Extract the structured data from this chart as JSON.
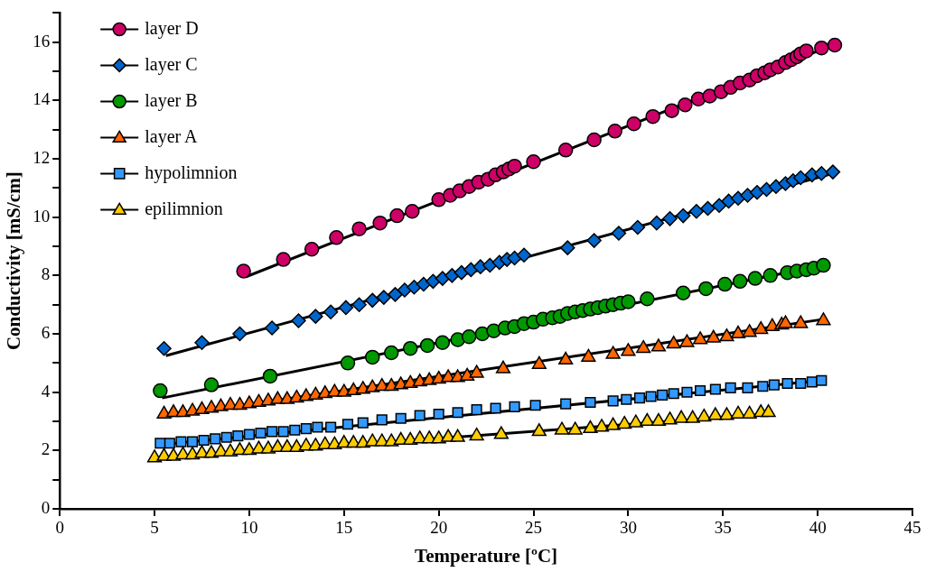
{
  "chart_data": {
    "type": "scatter",
    "xlabel": "Temperature [ºC]",
    "ylabel": "Conductivity [mS/cm]",
    "xlim": [
      0,
      45
    ],
    "xticks": [
      0,
      5,
      10,
      15,
      20,
      25,
      30,
      35,
      40,
      45
    ],
    "ylim": [
      0,
      17
    ],
    "yticks": [
      0,
      {
        "value": 1,
        "label": null
      },
      2,
      {
        "value": 3,
        "label": null
      },
      4,
      {
        "value": 5,
        "label": null
      },
      6,
      {
        "value": 7,
        "label": null
      },
      8,
      {
        "value": 9,
        "label": null
      },
      10,
      {
        "value": 11,
        "label": null
      },
      12,
      {
        "value": 13,
        "label": null
      },
      14,
      {
        "value": 15,
        "label": null
      },
      16,
      {
        "value": 17,
        "label": null
      }
    ],
    "grid": false,
    "legend": "top left",
    "series": [
      {
        "type": "line",
        "color": "#000000",
        "marker": "none",
        "x": [
          9.8,
          41
        ],
        "values": [
          7.95,
          15.95
        ]
      },
      {
        "type": "line",
        "color": "#000000",
        "marker": "none",
        "x": [
          5.6,
          40.8
        ],
        "values": [
          5.25,
          11.5
        ]
      },
      {
        "type": "line",
        "color": "#000000",
        "marker": "none",
        "x": [
          5.4,
          40.3
        ],
        "values": [
          3.8,
          8.35
        ]
      },
      {
        "type": "line",
        "color": "#000000",
        "marker": "none",
        "x": [
          5.5,
          40.3
        ],
        "values": [
          3.15,
          6.5
        ]
      },
      {
        "type": "line",
        "color": "#000000",
        "marker": "none",
        "x": [
          5.3,
          40.2
        ],
        "values": [
          2.2,
          4.4
        ]
      },
      {
        "type": "line",
        "color": "#000000",
        "marker": "none",
        "x": [
          5,
          37.4
        ],
        "values": [
          1.7,
          3.25
        ]
      },
      {
        "name": "layer D",
        "type": "scatter",
        "color": "#cc0066",
        "marker": "circle",
        "x": [
          9.7,
          11.8,
          13.3,
          14.6,
          15.8,
          16.9,
          17.8,
          18.6,
          20.0,
          20.6,
          21.1,
          21.6,
          22.1,
          22.6,
          23.0,
          23.4,
          23.7,
          24.0,
          25.0,
          26.7,
          28.2,
          29.3,
          30.3,
          31.3,
          32.3,
          33.0,
          33.7,
          34.3,
          34.9,
          35.4,
          35.9,
          36.4,
          36.8,
          37.2,
          37.5,
          37.9,
          38.3,
          38.6,
          38.9,
          39.1,
          39.4,
          40.2,
          40.9
        ],
        "values": [
          8.15,
          8.55,
          8.9,
          9.3,
          9.6,
          9.8,
          10.05,
          10.2,
          10.6,
          10.75,
          10.9,
          11.05,
          11.2,
          11.3,
          11.45,
          11.55,
          11.65,
          11.75,
          11.9,
          12.3,
          12.65,
          12.95,
          13.2,
          13.45,
          13.65,
          13.85,
          14.05,
          14.15,
          14.3,
          14.45,
          14.6,
          14.7,
          14.85,
          14.95,
          15.05,
          15.15,
          15.3,
          15.4,
          15.5,
          15.6,
          15.7,
          15.8,
          15.9
        ]
      },
      {
        "name": "layer C",
        "type": "scatter",
        "color": "#0066cc",
        "marker": "diamond",
        "x": [
          5.5,
          7.5,
          9.5,
          11.2,
          12.6,
          13.5,
          14.3,
          15.1,
          15.8,
          16.5,
          17.1,
          17.7,
          18.2,
          18.7,
          19.2,
          19.7,
          20.2,
          20.7,
          21.2,
          21.7,
          22.2,
          22.7,
          23.2,
          23.6,
          24.0,
          24.5,
          26.8,
          28.2,
          29.5,
          30.5,
          31.5,
          32.2,
          32.9,
          33.6,
          34.2,
          34.8,
          35.3,
          35.8,
          36.3,
          36.8,
          37.3,
          37.8,
          38.3,
          38.7,
          39.1,
          39.7,
          40.2,
          40.8
        ],
        "values": [
          5.5,
          5.7,
          6.0,
          6.2,
          6.45,
          6.6,
          6.75,
          6.9,
          7.0,
          7.15,
          7.25,
          7.35,
          7.5,
          7.6,
          7.7,
          7.8,
          7.9,
          8.0,
          8.1,
          8.2,
          8.3,
          8.35,
          8.45,
          8.55,
          8.6,
          8.7,
          8.95,
          9.2,
          9.45,
          9.65,
          9.8,
          9.95,
          10.05,
          10.2,
          10.3,
          10.4,
          10.55,
          10.65,
          10.75,
          10.85,
          10.95,
          11.05,
          11.15,
          11.25,
          11.35,
          11.45,
          11.5,
          11.55
        ]
      },
      {
        "name": "layer B",
        "type": "scatter",
        "color": "#009900",
        "marker": "circle",
        "x": [
          5.3,
          8.0,
          11.1,
          15.2,
          16.5,
          17.5,
          18.5,
          19.4,
          20.2,
          21.0,
          21.6,
          22.3,
          22.9,
          23.5,
          24.0,
          24.5,
          25.0,
          25.5,
          26.0,
          26.4,
          26.8,
          27.2,
          27.6,
          28.0,
          28.4,
          28.8,
          29.2,
          29.6,
          30.0,
          31.0,
          32.9,
          34.1,
          35.1,
          35.9,
          36.7,
          37.5,
          38.4,
          38.9,
          39.4,
          39.8,
          40.3
        ],
        "values": [
          4.05,
          4.25,
          4.55,
          5.0,
          5.2,
          5.35,
          5.5,
          5.6,
          5.7,
          5.8,
          5.9,
          6.0,
          6.1,
          6.2,
          6.25,
          6.35,
          6.4,
          6.5,
          6.55,
          6.6,
          6.7,
          6.75,
          6.8,
          6.85,
          6.9,
          6.95,
          7.0,
          7.05,
          7.1,
          7.2,
          7.4,
          7.55,
          7.7,
          7.8,
          7.9,
          8.0,
          8.1,
          8.15,
          8.2,
          8.25,
          8.35
        ]
      },
      {
        "name": "layer A",
        "type": "scatter",
        "color": "#ff6600",
        "marker": "triangle",
        "x": [
          5.5,
          6.0,
          6.5,
          7.0,
          7.5,
          8.0,
          8.5,
          9.0,
          9.5,
          10.0,
          10.5,
          11.0,
          11.5,
          12.0,
          12.5,
          13.0,
          13.5,
          14.0,
          14.5,
          15.0,
          15.5,
          16.0,
          16.5,
          17.0,
          17.5,
          18.0,
          18.5,
          19.0,
          19.5,
          20.0,
          20.5,
          21.0,
          21.5,
          22.0,
          23.4,
          25.3,
          26.7,
          27.9,
          29.2,
          30.0,
          30.8,
          31.6,
          32.4,
          33.1,
          33.8,
          34.5,
          35.2,
          35.8,
          36.4,
          37.0,
          37.6,
          38.1,
          38.3,
          39.1,
          40.3
        ],
        "values": [
          3.25,
          3.3,
          3.3,
          3.35,
          3.4,
          3.45,
          3.5,
          3.55,
          3.55,
          3.6,
          3.65,
          3.7,
          3.75,
          3.75,
          3.8,
          3.85,
          3.9,
          3.95,
          4.0,
          4.0,
          4.05,
          4.1,
          4.15,
          4.2,
          4.2,
          4.25,
          4.3,
          4.35,
          4.4,
          4.45,
          4.5,
          4.5,
          4.55,
          4.65,
          4.8,
          4.95,
          5.1,
          5.2,
          5.3,
          5.4,
          5.5,
          5.55,
          5.65,
          5.7,
          5.8,
          5.85,
          5.9,
          6.0,
          6.05,
          6.15,
          6.25,
          6.3,
          6.35,
          6.35,
          6.45
        ]
      },
      {
        "name": "hypolimnion",
        "type": "scatter",
        "color": "#3399ff",
        "marker": "square",
        "x": [
          5.3,
          5.8,
          6.4,
          7.0,
          7.6,
          8.2,
          8.8,
          9.4,
          10.0,
          10.6,
          11.2,
          11.8,
          12.4,
          13.0,
          13.6,
          14.3,
          15.2,
          16.0,
          17.0,
          18.0,
          19.0,
          20.0,
          21.0,
          22.0,
          23.0,
          24.0,
          25.1,
          26.7,
          28.0,
          29.2,
          29.9,
          30.6,
          31.2,
          31.8,
          32.4,
          33.1,
          33.8,
          34.6,
          35.4,
          36.3,
          37.1,
          37.7,
          38.4,
          39.1,
          39.7,
          40.2
        ],
        "values": [
          2.25,
          2.25,
          2.3,
          2.3,
          2.35,
          2.4,
          2.45,
          2.5,
          2.55,
          2.6,
          2.65,
          2.65,
          2.7,
          2.75,
          2.8,
          2.8,
          2.9,
          2.95,
          3.05,
          3.1,
          3.2,
          3.25,
          3.3,
          3.4,
          3.45,
          3.5,
          3.55,
          3.6,
          3.65,
          3.7,
          3.75,
          3.8,
          3.85,
          3.9,
          3.95,
          4.0,
          4.05,
          4.1,
          4.15,
          4.15,
          4.2,
          4.25,
          4.3,
          4.3,
          4.35,
          4.4
        ]
      },
      {
        "name": "epilimnion",
        "type": "scatter",
        "color": "#ffcc00",
        "marker": "triangle",
        "x": [
          5.0,
          5.5,
          6.0,
          6.5,
          7.0,
          7.5,
          8.0,
          8.5,
          9.0,
          9.5,
          10.0,
          10.5,
          11.0,
          11.5,
          12.0,
          12.5,
          13.0,
          13.5,
          14.0,
          14.5,
          15.0,
          15.5,
          16.0,
          16.5,
          17.0,
          17.5,
          18.0,
          18.5,
          19.0,
          19.5,
          20.0,
          20.5,
          21.0,
          22.0,
          23.3,
          25.3,
          26.5,
          27.2,
          28.0,
          28.6,
          29.2,
          29.8,
          30.4,
          31.0,
          31.6,
          32.2,
          32.8,
          33.4,
          34.0,
          34.6,
          35.2,
          35.8,
          36.4,
          37.0,
          37.4
        ],
        "values": [
          1.75,
          1.8,
          1.8,
          1.85,
          1.85,
          1.9,
          1.9,
          1.95,
          1.95,
          2.0,
          2.0,
          2.05,
          2.05,
          2.1,
          2.1,
          2.1,
          2.15,
          2.15,
          2.2,
          2.2,
          2.25,
          2.25,
          2.25,
          2.3,
          2.3,
          2.3,
          2.35,
          2.35,
          2.4,
          2.4,
          2.4,
          2.45,
          2.45,
          2.5,
          2.55,
          2.65,
          2.7,
          2.7,
          2.75,
          2.8,
          2.85,
          2.9,
          2.95,
          3.0,
          3.0,
          3.05,
          3.1,
          3.1,
          3.15,
          3.2,
          3.2,
          3.25,
          3.25,
          3.3,
          3.3
        ]
      }
    ]
  }
}
